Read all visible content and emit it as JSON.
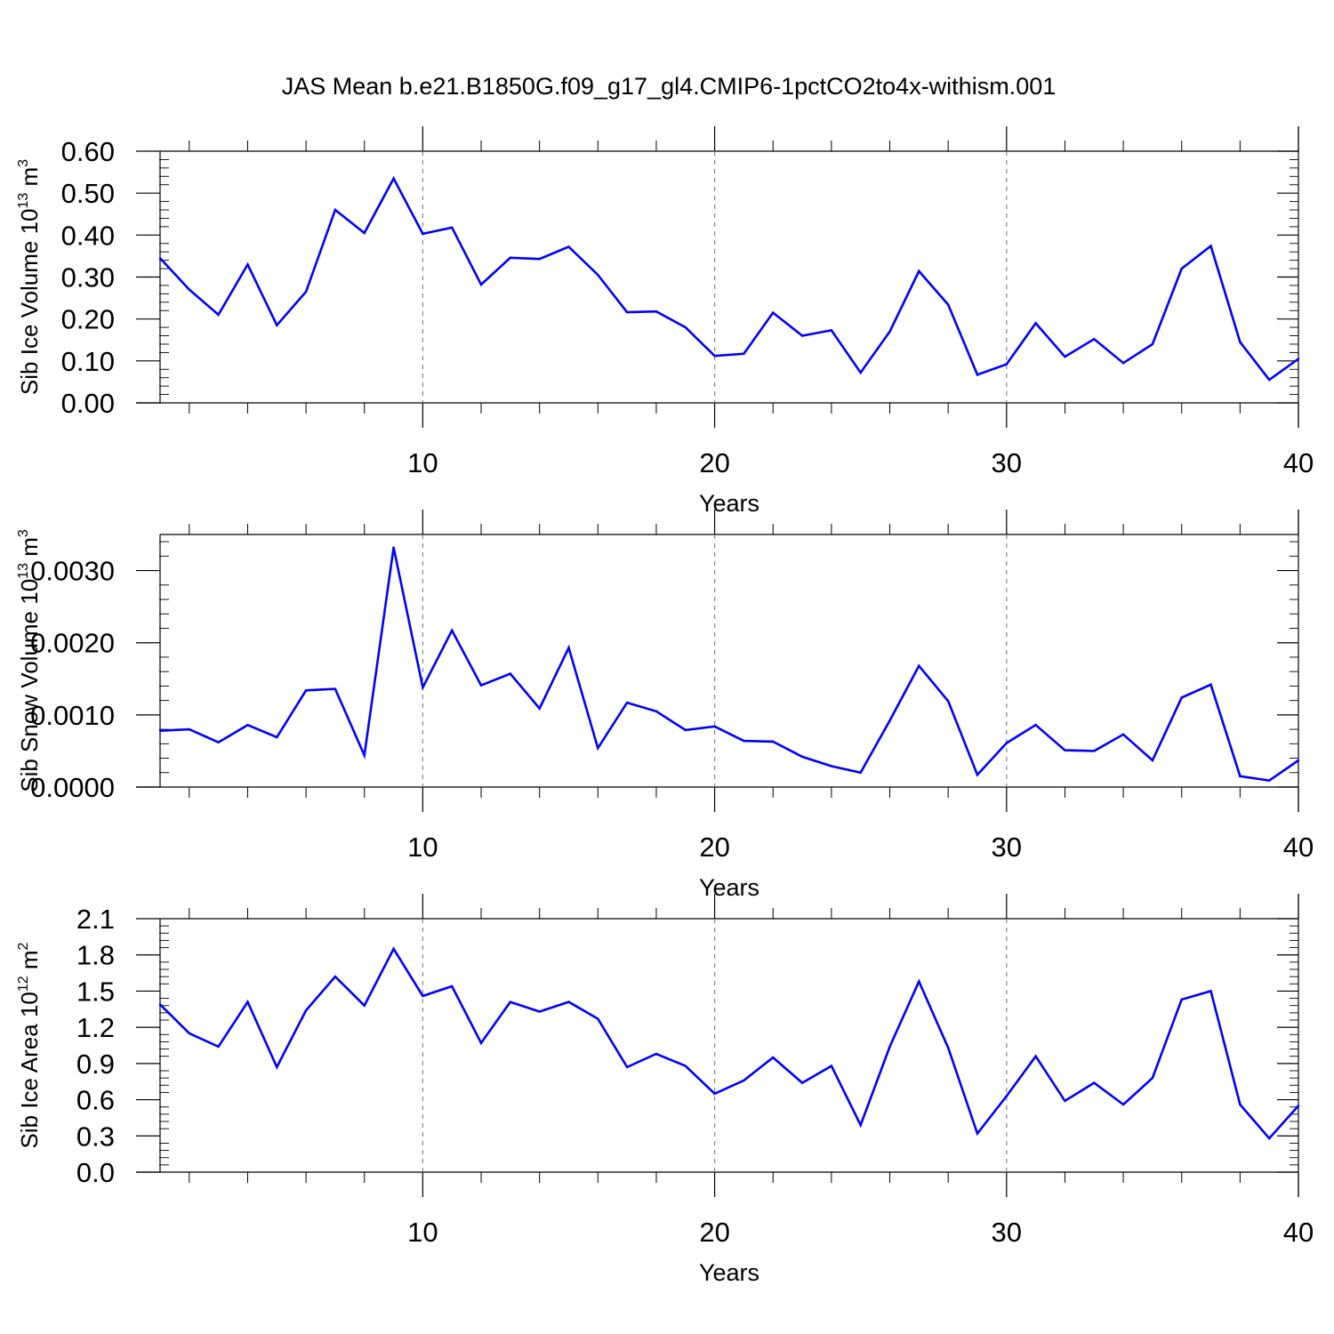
{
  "figure": {
    "title": "JAS Mean b.e21.B1850G.f09_g17_gl4.CMIP6-1pctCO2to4x-withism.001",
    "line_color": "#0000ff",
    "grid_color": "#888888"
  },
  "chart_data": [
    {
      "type": "line",
      "ylabel": {
        "main": "Sib Ice Volume 10",
        "exp": "13",
        "unit": " m",
        "unit_exp": "3"
      },
      "xlabel": "Years",
      "xlim": [
        1,
        40
      ],
      "ylim": [
        0,
        0.6
      ],
      "xticks": [
        10,
        20,
        30,
        40
      ],
      "yticks": [
        0.0,
        0.1,
        0.2,
        0.3,
        0.4,
        0.5,
        0.6
      ],
      "ytick_labels": [
        "0.00",
        "0.10",
        "0.20",
        "0.30",
        "0.40",
        "0.50",
        "0.60"
      ],
      "x": [
        1,
        2,
        3,
        4,
        5,
        6,
        7,
        8,
        9,
        10,
        11,
        12,
        13,
        14,
        15,
        16,
        17,
        18,
        19,
        20,
        21,
        22,
        23,
        24,
        25,
        26,
        27,
        28,
        29,
        30,
        31,
        32,
        33,
        34,
        35,
        36,
        37,
        38,
        39,
        40
      ],
      "values": [
        0.345,
        0.27,
        0.21,
        0.33,
        0.185,
        0.265,
        0.46,
        0.405,
        0.535,
        0.403,
        0.418,
        0.282,
        0.346,
        0.343,
        0.372,
        0.305,
        0.216,
        0.218,
        0.18,
        0.112,
        0.117,
        0.215,
        0.16,
        0.173,
        0.072,
        0.17,
        0.314,
        0.234,
        0.067,
        0.092,
        0.19,
        0.11,
        0.152,
        0.095,
        0.14,
        0.32,
        0.374,
        0.145,
        0.055,
        0.105
      ]
    },
    {
      "type": "line",
      "ylabel": {
        "main": "Sib Snow Volume 10",
        "exp": "13",
        "unit": " m",
        "unit_exp": "3"
      },
      "xlabel": "Years",
      "xlim": [
        1,
        40
      ],
      "ylim": [
        0,
        0.0035
      ],
      "xticks": [
        10,
        20,
        30,
        40
      ],
      "yticks": [
        0.0,
        0.001,
        0.002,
        0.003
      ],
      "ytick_labels": [
        "0.0000",
        "0.0010",
        "0.0020",
        "0.0030"
      ],
      "x": [
        1,
        2,
        3,
        4,
        5,
        6,
        7,
        8,
        9,
        10,
        11,
        12,
        13,
        14,
        15,
        16,
        17,
        18,
        19,
        20,
        21,
        22,
        23,
        24,
        25,
        26,
        27,
        28,
        29,
        30,
        31,
        32,
        33,
        34,
        35,
        36,
        37,
        38,
        39,
        40
      ],
      "values": [
        0.00078,
        0.0008,
        0.00062,
        0.00086,
        0.00069,
        0.00134,
        0.00136,
        0.00044,
        0.00332,
        0.00138,
        0.00217,
        0.00141,
        0.00157,
        0.00109,
        0.00193,
        0.00054,
        0.00117,
        0.00105,
        0.00079,
        0.00084,
        0.00064,
        0.00063,
        0.00042,
        0.00029,
        0.0002,
        0.00092,
        0.00168,
        0.00119,
        0.00017,
        0.00061,
        0.00086,
        0.00051,
        0.0005,
        0.00073,
        0.00037,
        0.00124,
        0.00142,
        0.00015,
        9e-05,
        0.00037
      ]
    },
    {
      "type": "line",
      "ylabel": {
        "main": "Sib Ice Area 10",
        "exp": "12",
        "unit": " m",
        "unit_exp": "2"
      },
      "xlabel": "Years",
      "xlim": [
        1,
        40
      ],
      "ylim": [
        0,
        2.1
      ],
      "xticks": [
        10,
        20,
        30,
        40
      ],
      "yticks": [
        0.0,
        0.3,
        0.6,
        0.9,
        1.2,
        1.5,
        1.8,
        2.1
      ],
      "ytick_labels": [
        "0.0",
        "0.3",
        "0.6",
        "0.9",
        "1.2",
        "1.5",
        "1.8",
        "2.1"
      ],
      "x": [
        1,
        2,
        3,
        4,
        5,
        6,
        7,
        8,
        9,
        10,
        11,
        12,
        13,
        14,
        15,
        16,
        17,
        18,
        19,
        20,
        21,
        22,
        23,
        24,
        25,
        26,
        27,
        28,
        29,
        30,
        31,
        32,
        33,
        34,
        35,
        36,
        37,
        38,
        39,
        40
      ],
      "values": [
        1.39,
        1.15,
        1.04,
        1.41,
        0.87,
        1.34,
        1.62,
        1.38,
        1.85,
        1.46,
        1.54,
        1.07,
        1.41,
        1.33,
        1.41,
        1.27,
        0.87,
        0.98,
        0.88,
        0.65,
        0.76,
        0.95,
        0.74,
        0.88,
        0.39,
        1.04,
        1.58,
        1.03,
        0.32,
        0.63,
        0.96,
        0.59,
        0.74,
        0.56,
        0.78,
        1.43,
        1.5,
        0.56,
        0.28,
        0.55
      ]
    }
  ]
}
